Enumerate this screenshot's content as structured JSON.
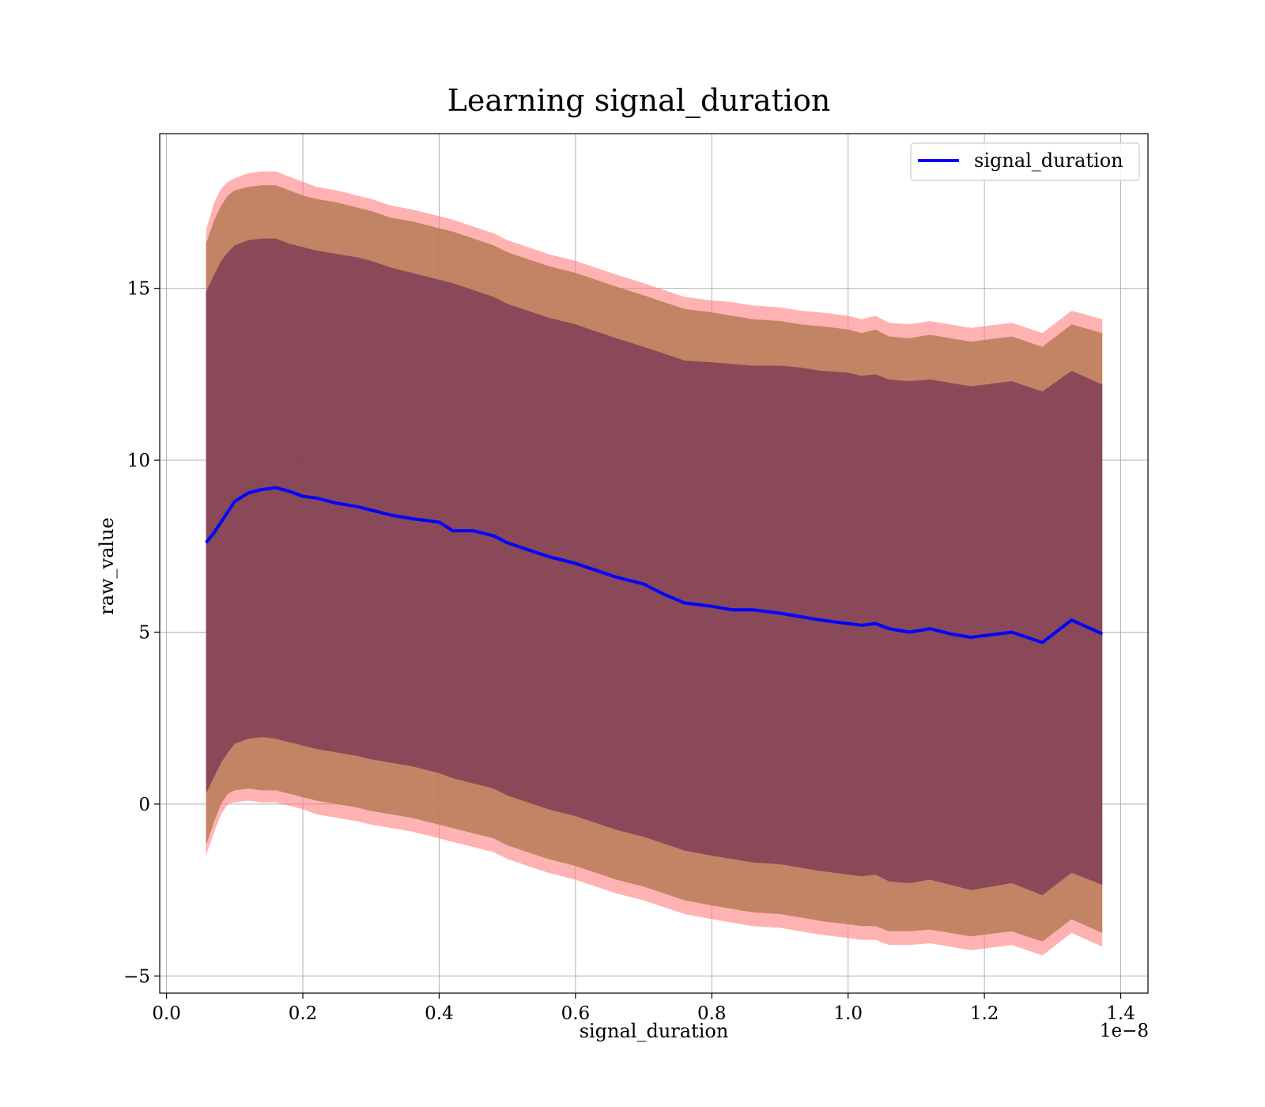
{
  "chart_data": {
    "type": "area",
    "title": "Learning signal_duration",
    "xlabel": "signal_duration",
    "ylabel": "raw_value",
    "x_offset_label": "1e−8",
    "xlim": [
      -0.01,
      1.44
    ],
    "ylim": [
      -5.5,
      19.5
    ],
    "xticks": [
      0.0,
      0.2,
      0.4,
      0.6,
      0.8,
      1.0,
      1.2,
      1.4
    ],
    "xtick_labels": [
      "0.0",
      "0.2",
      "0.4",
      "0.6",
      "0.8",
      "1.0",
      "1.2",
      "1.4"
    ],
    "yticks": [
      -5,
      0,
      5,
      10,
      15
    ],
    "ytick_labels": [
      "−5",
      "0",
      "5",
      "10",
      "15"
    ],
    "grid": true,
    "legend_position": "top-right",
    "colors": {
      "line": "#0000ff",
      "band_outer": "#ff7f7f",
      "band_middle": "#b97a57",
      "band_inner": "#7a3b55"
    },
    "x": [
      0.058,
      0.07,
      0.08,
      0.09,
      0.1,
      0.12,
      0.14,
      0.16,
      0.18,
      0.2,
      0.22,
      0.25,
      0.28,
      0.3,
      0.33,
      0.36,
      0.4,
      0.42,
      0.45,
      0.48,
      0.5,
      0.53,
      0.56,
      0.6,
      0.63,
      0.66,
      0.7,
      0.73,
      0.76,
      0.8,
      0.83,
      0.86,
      0.9,
      0.93,
      0.96,
      1.0,
      1.02,
      1.04,
      1.06,
      1.09,
      1.12,
      1.15,
      1.18,
      1.24,
      1.285,
      1.328,
      1.373
    ],
    "series": [
      {
        "name": "signal_duration",
        "values": [
          7.6,
          7.9,
          8.2,
          8.5,
          8.8,
          9.05,
          9.15,
          9.2,
          9.1,
          8.95,
          8.9,
          8.75,
          8.65,
          8.55,
          8.4,
          8.3,
          8.2,
          7.95,
          7.95,
          7.8,
          7.6,
          7.4,
          7.2,
          7.0,
          6.8,
          6.6,
          6.4,
          6.1,
          5.85,
          5.75,
          5.65,
          5.65,
          5.55,
          5.45,
          5.35,
          5.25,
          5.2,
          5.25,
          5.1,
          5.0,
          5.1,
          4.95,
          4.85,
          5.0,
          4.7,
          5.35,
          4.95
        ]
      }
    ],
    "band_outer": {
      "upper": [
        16.7,
        17.5,
        17.9,
        18.1,
        18.2,
        18.35,
        18.4,
        18.4,
        18.25,
        18.1,
        17.95,
        17.85,
        17.7,
        17.6,
        17.4,
        17.3,
        17.1,
        17.0,
        16.8,
        16.6,
        16.4,
        16.2,
        16.0,
        15.8,
        15.6,
        15.4,
        15.15,
        14.95,
        14.75,
        14.65,
        14.6,
        14.5,
        14.45,
        14.35,
        14.3,
        14.2,
        14.1,
        14.2,
        14.0,
        13.95,
        14.05,
        13.95,
        13.85,
        14.0,
        13.7,
        14.35,
        14.1
      ],
      "lower": [
        -1.5,
        -0.8,
        -0.3,
        0.0,
        0.05,
        0.1,
        0.05,
        0.05,
        -0.05,
        -0.15,
        -0.3,
        -0.4,
        -0.5,
        -0.6,
        -0.7,
        -0.8,
        -1.0,
        -1.1,
        -1.25,
        -1.4,
        -1.6,
        -1.8,
        -2.0,
        -2.2,
        -2.4,
        -2.6,
        -2.8,
        -3.0,
        -3.2,
        -3.35,
        -3.45,
        -3.55,
        -3.6,
        -3.7,
        -3.8,
        -3.9,
        -3.95,
        -3.95,
        -4.1,
        -4.1,
        -4.05,
        -4.15,
        -4.25,
        -4.1,
        -4.4,
        -3.75,
        -4.15
      ]
    },
    "band_middle": {
      "upper": [
        16.3,
        17.0,
        17.4,
        17.7,
        17.85,
        17.95,
        18.0,
        18.0,
        17.85,
        17.7,
        17.6,
        17.5,
        17.35,
        17.25,
        17.05,
        16.95,
        16.75,
        16.65,
        16.45,
        16.25,
        16.05,
        15.85,
        15.65,
        15.45,
        15.25,
        15.05,
        14.8,
        14.6,
        14.4,
        14.3,
        14.2,
        14.1,
        14.05,
        13.95,
        13.9,
        13.8,
        13.7,
        13.8,
        13.6,
        13.55,
        13.65,
        13.55,
        13.45,
        13.6,
        13.3,
        13.95,
        13.7
      ],
      "lower": [
        -1.2,
        -0.5,
        0.0,
        0.3,
        0.4,
        0.45,
        0.4,
        0.4,
        0.3,
        0.2,
        0.1,
        0.0,
        -0.1,
        -0.2,
        -0.3,
        -0.4,
        -0.6,
        -0.7,
        -0.85,
        -1.0,
        -1.2,
        -1.4,
        -1.6,
        -1.8,
        -2.0,
        -2.2,
        -2.4,
        -2.6,
        -2.8,
        -2.95,
        -3.05,
        -3.15,
        -3.2,
        -3.3,
        -3.4,
        -3.5,
        -3.55,
        -3.55,
        -3.7,
        -3.7,
        -3.65,
        -3.75,
        -3.85,
        -3.7,
        -4.0,
        -3.35,
        -3.75
      ]
    },
    "band_inner": {
      "upper": [
        14.9,
        15.4,
        15.8,
        16.05,
        16.25,
        16.4,
        16.45,
        16.45,
        16.3,
        16.2,
        16.1,
        16.0,
        15.9,
        15.8,
        15.6,
        15.45,
        15.25,
        15.15,
        14.95,
        14.75,
        14.55,
        14.35,
        14.15,
        13.95,
        13.75,
        13.55,
        13.3,
        13.1,
        12.9,
        12.85,
        12.8,
        12.75,
        12.75,
        12.7,
        12.6,
        12.55,
        12.45,
        12.5,
        12.35,
        12.3,
        12.35,
        12.25,
        12.15,
        12.3,
        12.0,
        12.6,
        12.2
      ],
      "lower": [
        0.3,
        0.8,
        1.2,
        1.5,
        1.75,
        1.9,
        1.95,
        1.9,
        1.8,
        1.7,
        1.6,
        1.5,
        1.4,
        1.3,
        1.2,
        1.1,
        0.9,
        0.75,
        0.6,
        0.45,
        0.25,
        0.05,
        -0.15,
        -0.35,
        -0.55,
        -0.75,
        -0.95,
        -1.15,
        -1.35,
        -1.5,
        -1.6,
        -1.7,
        -1.75,
        -1.85,
        -1.95,
        -2.05,
        -2.1,
        -2.05,
        -2.25,
        -2.3,
        -2.2,
        -2.35,
        -2.5,
        -2.3,
        -2.65,
        -2.0,
        -2.35
      ]
    }
  }
}
